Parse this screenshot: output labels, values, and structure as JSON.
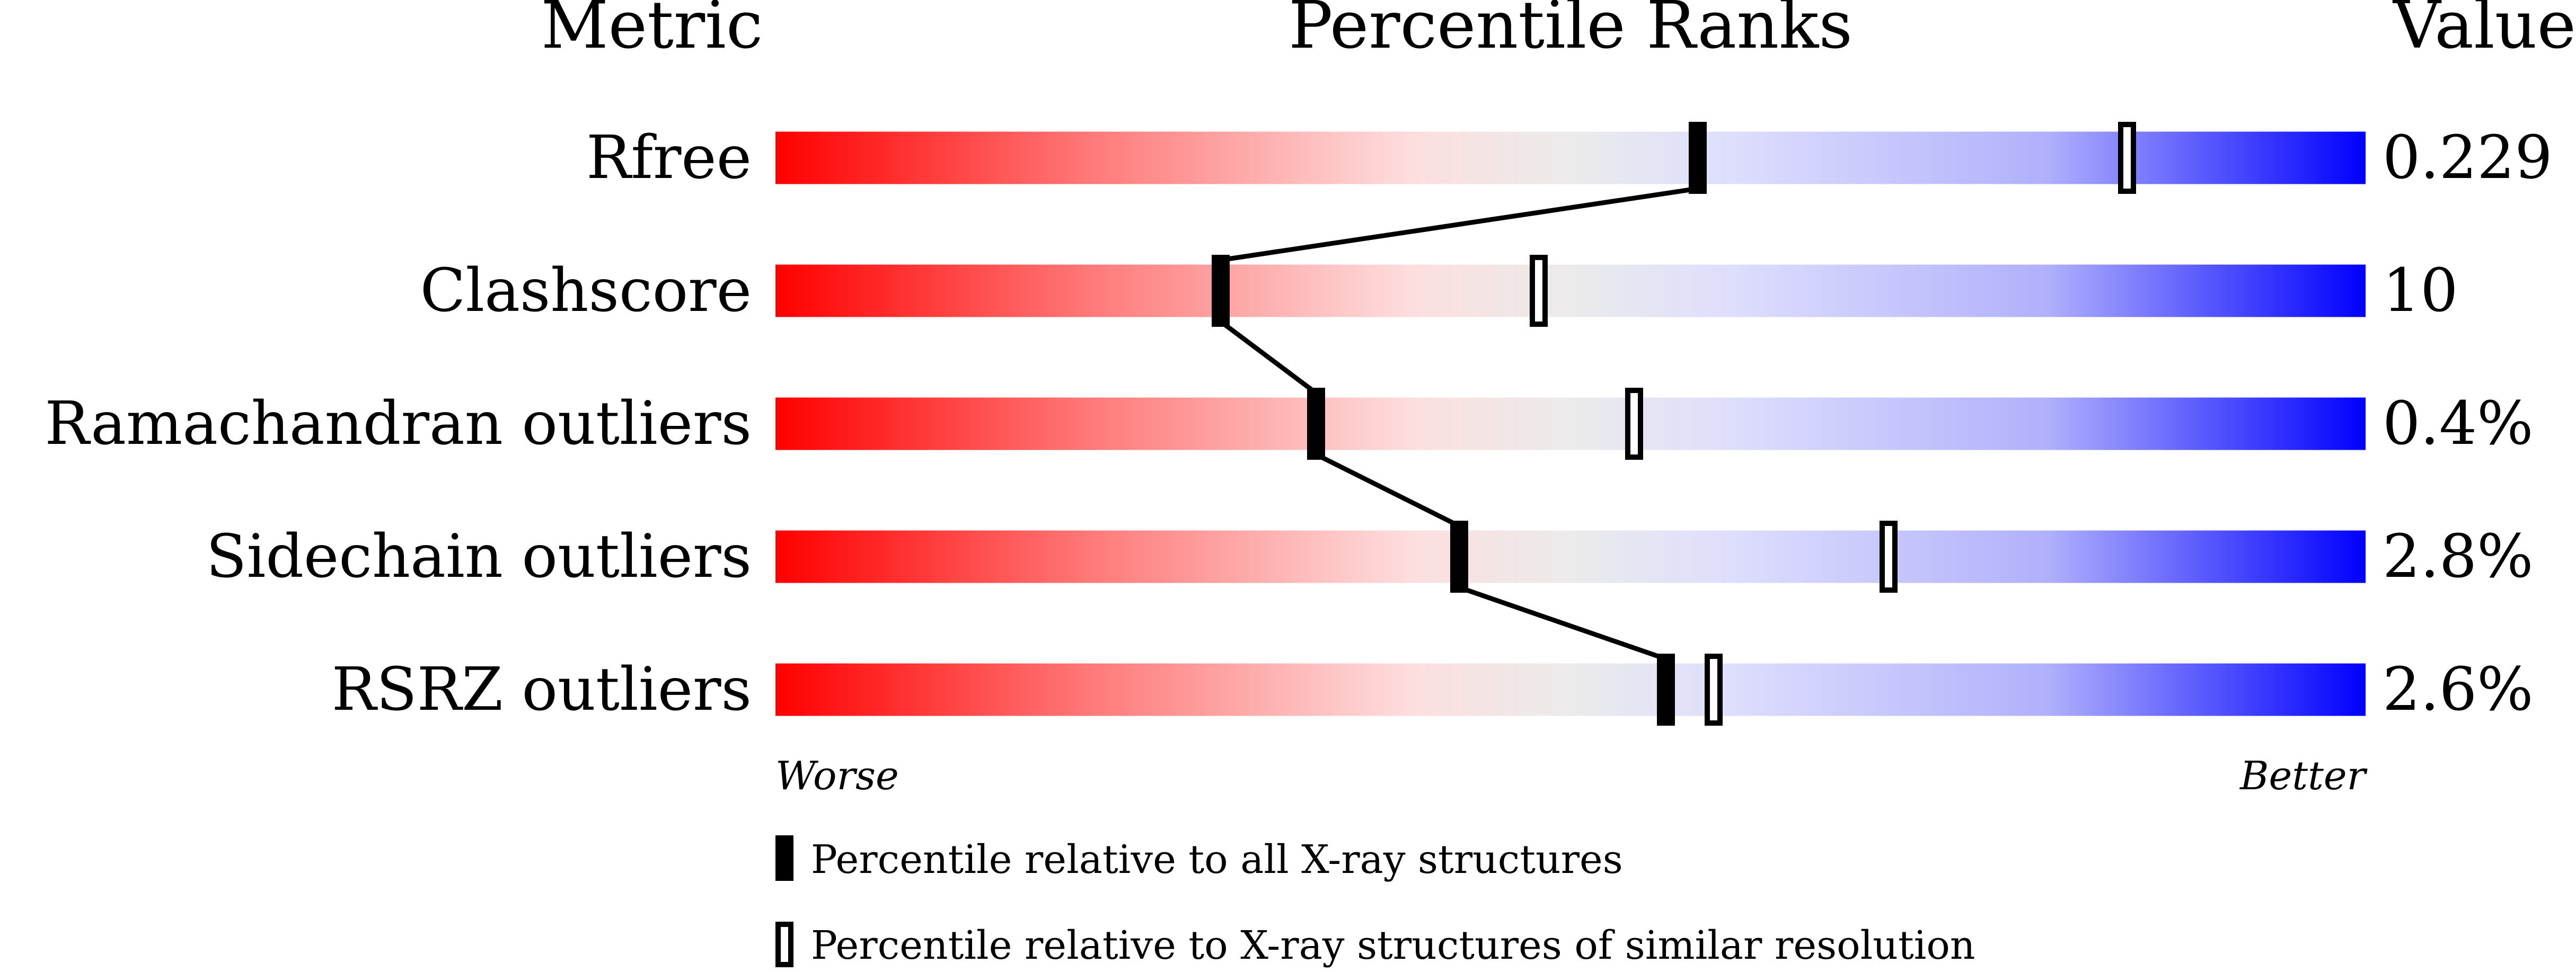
{
  "chart_data": {
    "type": "bar",
    "headers": {
      "metric": "Metric",
      "ranks": "Percentile Ranks",
      "value": "Value"
    },
    "metrics": [
      {
        "name": "Rfree",
        "value": "0.229",
        "percentile_all": 58,
        "percentile_similar": 85
      },
      {
        "name": "Clashscore",
        "value": "10",
        "percentile_all": 28,
        "percentile_similar": 48
      },
      {
        "name": "Ramachandran outliers",
        "value": "0.4%",
        "percentile_all": 34,
        "percentile_similar": 54
      },
      {
        "name": "Sidechain outliers",
        "value": "2.8%",
        "percentile_all": 43,
        "percentile_similar": 70
      },
      {
        "name": "RSRZ outliers",
        "value": "2.6%",
        "percentile_all": 56,
        "percentile_similar": 59
      }
    ],
    "xlim": [
      0,
      100
    ],
    "axis_labels": {
      "worse": "Worse",
      "better": "Better"
    },
    "legend": {
      "all": "Percentile relative to all X-ray structures",
      "similar": "Percentile relative to X-ray structures of similar resolution"
    },
    "colors": {
      "worse": "#ff0000",
      "middle": "#ebebeb",
      "better": "#0000ff",
      "marker": "#000000"
    }
  }
}
